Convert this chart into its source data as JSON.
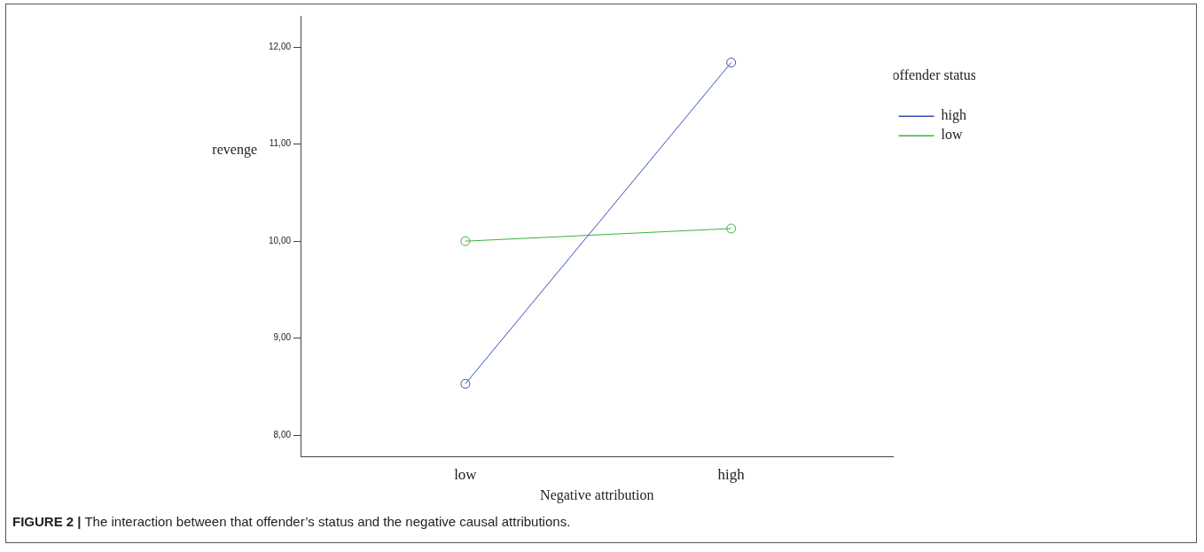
{
  "chart_data": {
    "type": "line",
    "xlabel": "Negative attribution",
    "ylabel": "revenge",
    "legend_title": "offender status",
    "categories": [
      "low",
      "high"
    ],
    "series": [
      {
        "name": "high",
        "color": "#3a4fb5",
        "values": [
          8.53,
          11.84
        ]
      },
      {
        "name": "low",
        "color": "#3cb43c",
        "values": [
          10.0,
          10.13
        ]
      }
    ],
    "ylim": [
      7.78,
      12.32
    ],
    "yticks": [
      {
        "value": 8,
        "label": "8,00"
      },
      {
        "value": 9,
        "label": "9,00"
      },
      {
        "value": 10,
        "label": "10,00"
      },
      {
        "value": 11,
        "label": "11,00"
      },
      {
        "value": 12,
        "label": "12,00"
      }
    ],
    "marker": "circle",
    "line_style": "solid",
    "legend": "top right",
    "grid": false,
    "annotations": [
      "FIGURE 2 | The interaction between that offender’s status and the negative causal attributions."
    ]
  }
}
